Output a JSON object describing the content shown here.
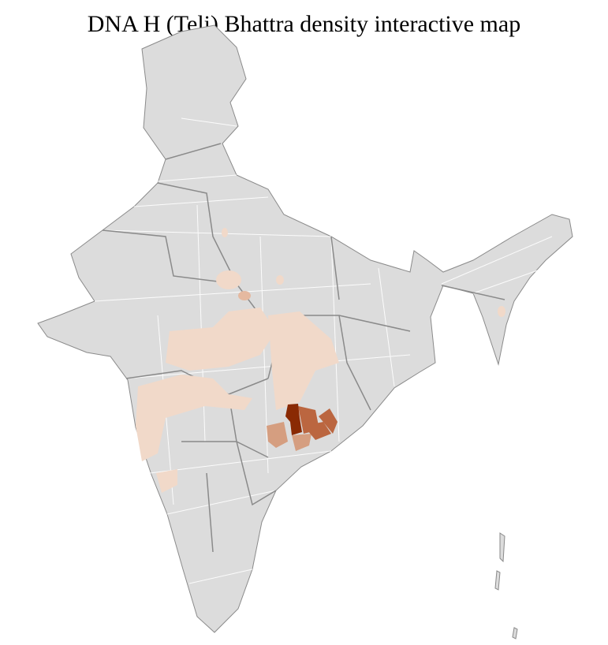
{
  "title": "DNA H (Teli) Bhattra density interactive map",
  "colors": {
    "base": "#dcdcdc",
    "state_border": "#8a8a8a",
    "district_border": "#ffffff",
    "density_low": "#f1d9c9",
    "density_mid_low": "#d59e80",
    "density_mid": "#bb6640",
    "density_high": "#8a2a04"
  }
}
